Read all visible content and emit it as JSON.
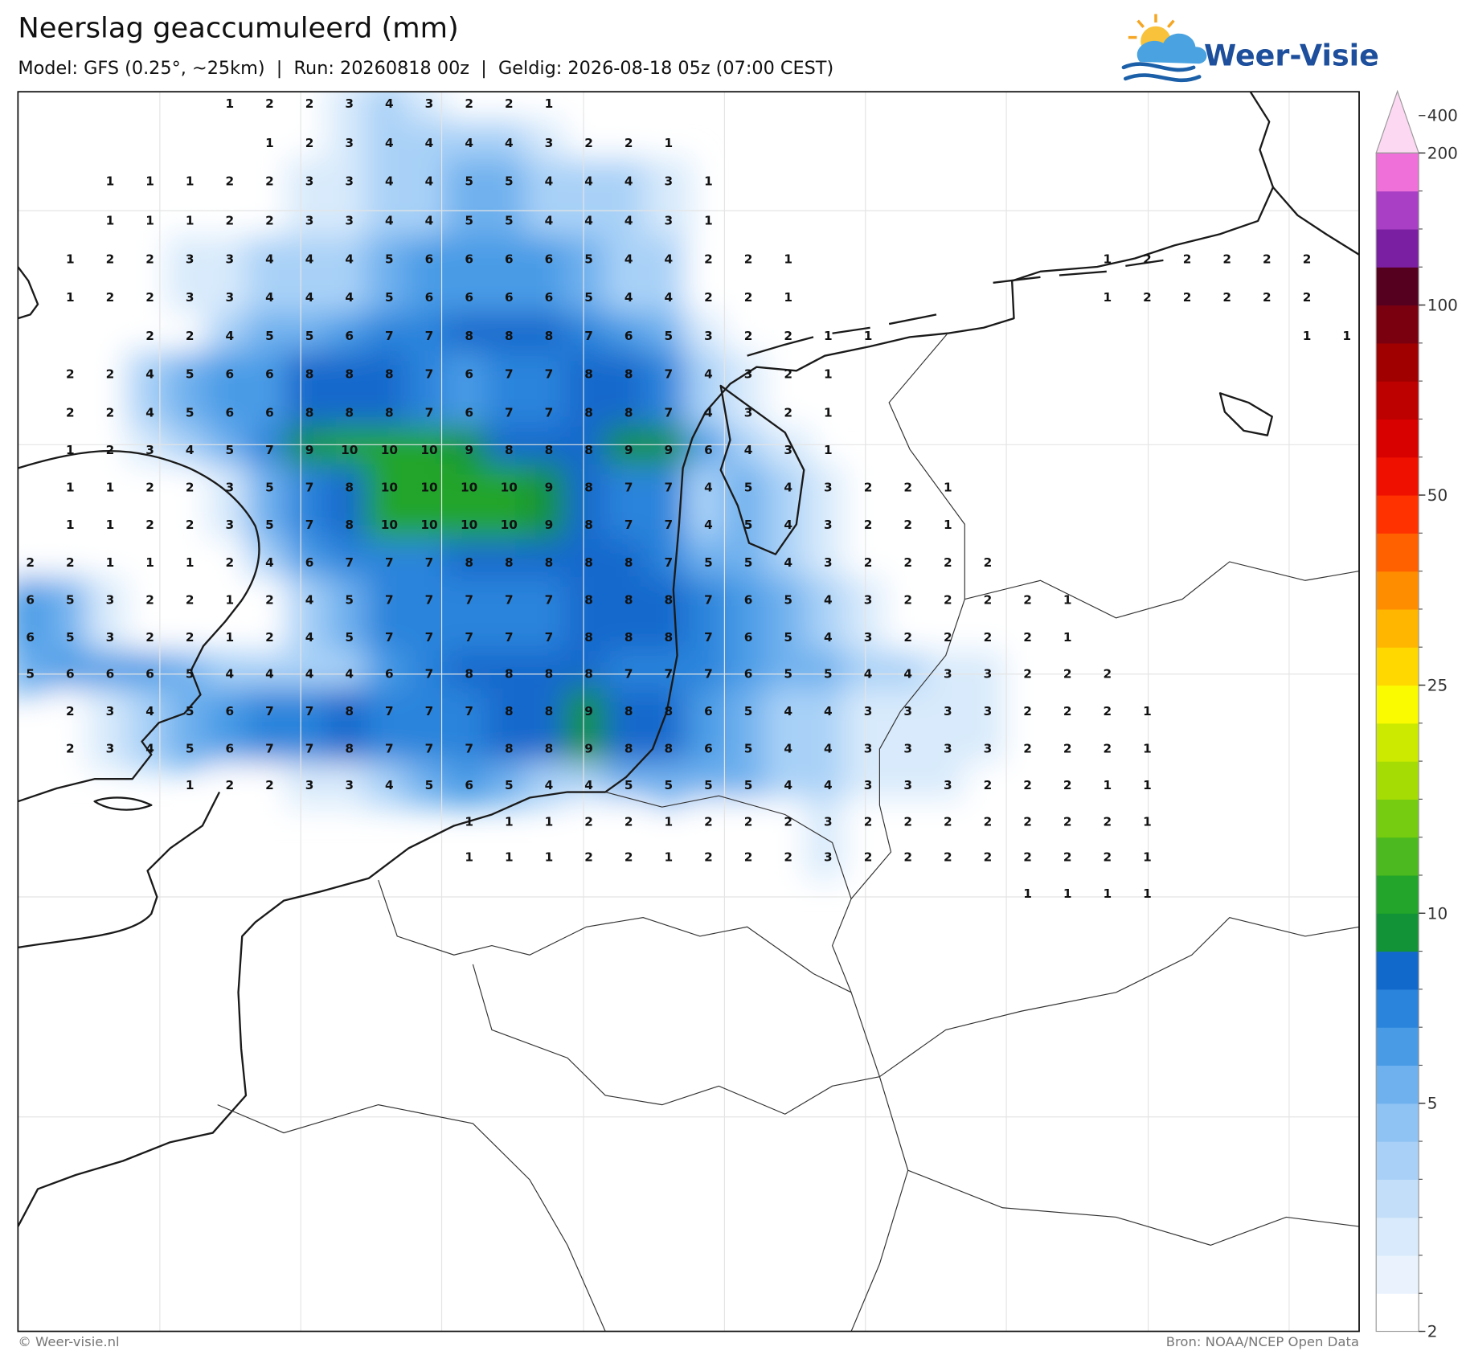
{
  "map": {
    "title": "Neerslag geaccumuleerd (mm)",
    "subtitle": "Model: GFS (0.25°, ~25km)  |  Run: 20260818 00z  |  Geldig: 2026-08-18 05z (07:00 CEST)",
    "logo_text": "Weer-Visie",
    "footer_left": "© Weer-visie.nl",
    "footer_right": "Bron: NOAA/NCEP Open Data",
    "grid": [
      [
        null,
        null,
        null,
        null,
        null,
        1,
        2,
        2,
        3,
        4,
        3,
        2,
        2,
        1,
        null,
        null,
        null,
        null,
        null,
        null,
        null,
        null,
        null,
        null,
        null,
        null,
        null,
        null,
        null,
        null,
        null,
        null,
        null,
        null
      ],
      [
        null,
        null,
        null,
        null,
        null,
        null,
        1,
        2,
        3,
        4,
        4,
        4,
        4,
        3,
        2,
        2,
        1,
        null,
        null,
        null,
        null,
        null,
        null,
        null,
        null,
        null,
        null,
        null,
        null,
        null,
        null,
        null,
        null,
        null
      ],
      [
        null,
        null,
        1,
        1,
        1,
        2,
        2,
        3,
        3,
        4,
        4,
        5,
        5,
        4,
        4,
        4,
        3,
        1,
        null,
        null,
        null,
        null,
        null,
        null,
        null,
        null,
        null,
        null,
        null,
        null,
        null,
        null,
        null,
        null
      ],
      [
        null,
        null,
        1,
        1,
        1,
        2,
        2,
        3,
        3,
        4,
        4,
        5,
        5,
        4,
        4,
        4,
        3,
        1,
        null,
        null,
        null,
        null,
        null,
        null,
        null,
        null,
        null,
        null,
        null,
        null,
        null,
        null,
        null,
        null
      ],
      [
        null,
        1,
        2,
        2,
        3,
        3,
        4,
        4,
        4,
        5,
        6,
        6,
        6,
        6,
        5,
        4,
        4,
        2,
        2,
        1,
        null,
        null,
        null,
        null,
        null,
        null,
        null,
        1,
        2,
        2,
        2,
        2,
        2,
        null
      ],
      [
        null,
        1,
        2,
        2,
        3,
        3,
        4,
        4,
        4,
        5,
        6,
        6,
        6,
        6,
        5,
        4,
        4,
        2,
        2,
        1,
        null,
        null,
        null,
        null,
        null,
        null,
        null,
        1,
        2,
        2,
        2,
        2,
        2,
        null
      ],
      [
        null,
        null,
        null,
        2,
        2,
        4,
        5,
        5,
        6,
        7,
        7,
        8,
        8,
        8,
        7,
        6,
        5,
        3,
        2,
        2,
        1,
        1,
        null,
        null,
        null,
        null,
        null,
        null,
        null,
        null,
        null,
        null,
        1,
        1
      ],
      [
        null,
        2,
        2,
        4,
        5,
        6,
        6,
        8,
        8,
        8,
        7,
        6,
        7,
        7,
        8,
        8,
        7,
        4,
        3,
        2,
        1,
        null,
        null,
        null,
        null,
        null,
        null,
        null,
        null,
        null,
        null,
        null,
        null,
        null
      ],
      [
        null,
        2,
        2,
        4,
        5,
        6,
        6,
        8,
        8,
        8,
        7,
        6,
        7,
        7,
        8,
        8,
        7,
        4,
        3,
        2,
        1,
        null,
        null,
        null,
        null,
        null,
        null,
        null,
        null,
        null,
        null,
        null,
        null,
        null
      ],
      [
        null,
        1,
        2,
        3,
        4,
        5,
        7,
        9,
        10,
        10,
        10,
        9,
        8,
        8,
        8,
        9,
        9,
        6,
        4,
        3,
        1,
        null,
        null,
        null,
        null,
        null,
        null,
        null,
        null,
        null,
        null,
        null,
        null,
        null
      ],
      [
        null,
        1,
        1,
        2,
        2,
        3,
        5,
        7,
        8,
        10,
        10,
        10,
        10,
        9,
        8,
        7,
        7,
        4,
        5,
        4,
        3,
        2,
        2,
        1,
        null,
        null,
        null,
        null,
        null,
        null,
        null,
        null,
        null,
        null
      ],
      [
        null,
        1,
        1,
        2,
        2,
        3,
        5,
        7,
        8,
        10,
        10,
        10,
        10,
        9,
        8,
        7,
        7,
        4,
        5,
        4,
        3,
        2,
        2,
        1,
        null,
        null,
        null,
        null,
        null,
        null,
        null,
        null,
        null,
        null
      ],
      [
        2,
        2,
        1,
        1,
        1,
        2,
        4,
        6,
        7,
        7,
        7,
        8,
        8,
        8,
        8,
        8,
        7,
        5,
        5,
        4,
        3,
        2,
        2,
        2,
        2,
        null,
        null,
        null,
        null,
        null,
        null,
        null,
        null,
        null
      ],
      [
        6,
        5,
        3,
        2,
        2,
        1,
        2,
        4,
        5,
        7,
        7,
        7,
        7,
        7,
        8,
        8,
        8,
        7,
        6,
        5,
        4,
        3,
        2,
        2,
        2,
        2,
        1,
        null,
        null,
        null,
        null,
        null,
        null,
        null
      ],
      [
        6,
        5,
        3,
        2,
        2,
        1,
        2,
        4,
        5,
        7,
        7,
        7,
        7,
        7,
        8,
        8,
        8,
        7,
        6,
        5,
        4,
        3,
        2,
        2,
        2,
        2,
        1,
        null,
        null,
        null,
        null,
        null,
        null,
        null
      ],
      [
        5,
        6,
        6,
        6,
        5,
        4,
        4,
        4,
        4,
        6,
        7,
        8,
        8,
        8,
        8,
        7,
        7,
        7,
        6,
        5,
        5,
        4,
        4,
        3,
        3,
        2,
        2,
        2,
        null,
        null,
        null,
        null,
        null,
        null
      ],
      [
        null,
        2,
        3,
        4,
        5,
        6,
        7,
        7,
        8,
        7,
        7,
        7,
        8,
        8,
        9,
        8,
        8,
        6,
        5,
        4,
        4,
        3,
        3,
        3,
        3,
        2,
        2,
        2,
        1,
        null,
        null,
        null,
        null,
        null
      ],
      [
        null,
        2,
        3,
        4,
        5,
        6,
        7,
        7,
        8,
        7,
        7,
        7,
        8,
        8,
        9,
        8,
        8,
        6,
        5,
        4,
        4,
        3,
        3,
        3,
        3,
        2,
        2,
        2,
        1,
        null,
        null,
        null,
        null,
        null
      ],
      [
        null,
        null,
        null,
        null,
        1,
        2,
        2,
        3,
        3,
        4,
        5,
        6,
        5,
        4,
        4,
        5,
        5,
        5,
        5,
        4,
        4,
        3,
        3,
        3,
        2,
        2,
        2,
        1,
        1,
        null,
        null,
        null,
        null,
        null
      ],
      [
        null,
        null,
        null,
        null,
        null,
        null,
        null,
        null,
        null,
        null,
        null,
        1,
        1,
        1,
        2,
        2,
        1,
        2,
        2,
        2,
        3,
        2,
        2,
        2,
        2,
        2,
        2,
        2,
        1,
        null,
        null,
        null,
        null,
        null
      ],
      [
        null,
        null,
        null,
        null,
        null,
        null,
        null,
        null,
        null,
        null,
        null,
        1,
        1,
        1,
        2,
        2,
        1,
        2,
        2,
        2,
        3,
        2,
        2,
        2,
        2,
        2,
        2,
        2,
        1,
        null,
        null,
        null,
        null,
        null
      ],
      [
        null,
        null,
        null,
        null,
        null,
        null,
        null,
        null,
        null,
        null,
        null,
        null,
        null,
        null,
        null,
        null,
        null,
        null,
        null,
        null,
        null,
        null,
        null,
        null,
        null,
        1,
        1,
        1,
        1,
        null,
        null,
        null,
        null,
        null
      ]
    ],
    "colorbar": {
      "levels": [
        2,
        2.5,
        3,
        3.5,
        4,
        4.5,
        5,
        6,
        7,
        8,
        9,
        10,
        12,
        14,
        16,
        18,
        20,
        25,
        30,
        35,
        40,
        45,
        50,
        60,
        70,
        80,
        90,
        100,
        125,
        150,
        175,
        200
      ],
      "colors": [
        "#ffffff",
        "#eaf3fd",
        "#d8eafb",
        "#c3def9",
        "#a9d1f7",
        "#8ec3f3",
        "#6fb1ee",
        "#4a9be6",
        "#2b84db",
        "#1269cc",
        "#139337",
        "#22a52a",
        "#4bb91f",
        "#75cc10",
        "#a5dc04",
        "#cbea00",
        "#fbfb00",
        "#ffd800",
        "#ffb600",
        "#ff8d00",
        "#ff6000",
        "#ff3200",
        "#f01000",
        "#d90000",
        "#bd0000",
        "#a00000",
        "#7a0010",
        "#560020",
        "#7a1fa2",
        "#a93fc4",
        "#ee70d8"
      ],
      "extend_color": "#fcd8f2",
      "ticks": [
        2,
        5,
        10,
        25,
        50,
        100,
        200,
        400
      ]
    }
  }
}
